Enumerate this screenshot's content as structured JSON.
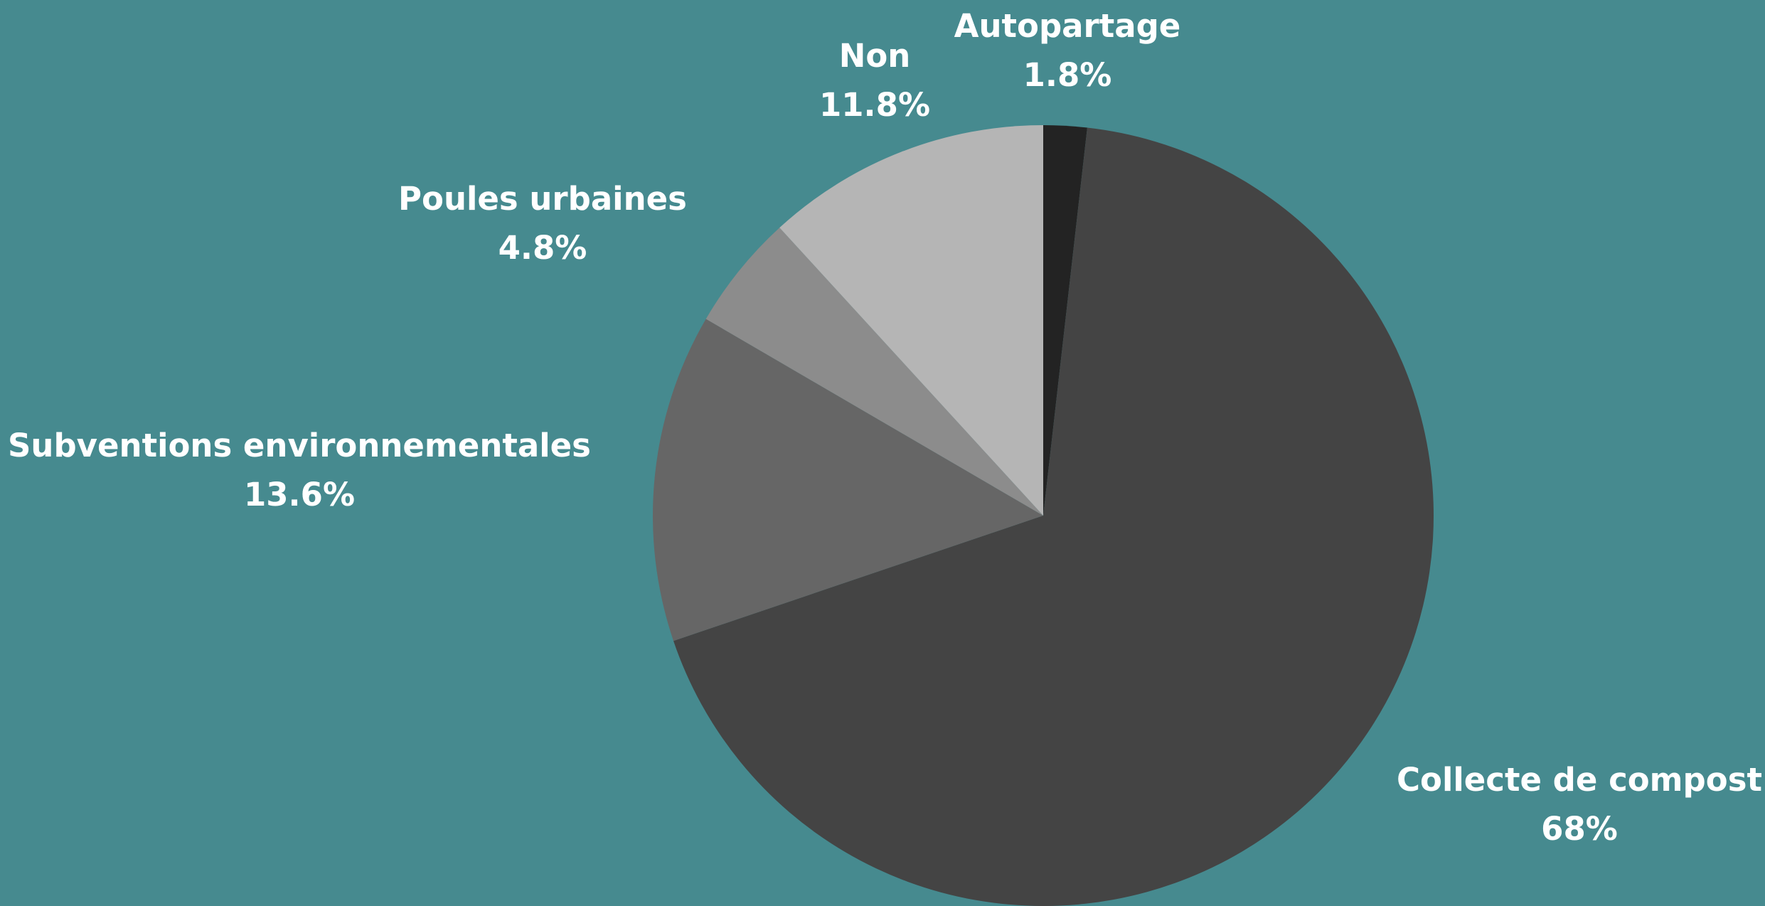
{
  "chart_data": {
    "type": "pie",
    "categories": [
      "Autopartage",
      "Collecte de compost",
      "Subventions environnementales",
      "Poules urbaines",
      "Non"
    ],
    "values": [
      1.8,
      68,
      13.6,
      4.8,
      11.8
    ],
    "value_labels": [
      "1.8%",
      "68%",
      "13.6%",
      "4.8%",
      "11.8%"
    ],
    "colors": [
      "#232323",
      "#444444",
      "#666666",
      "#8c8c8c",
      "#b5b5b5"
    ]
  }
}
